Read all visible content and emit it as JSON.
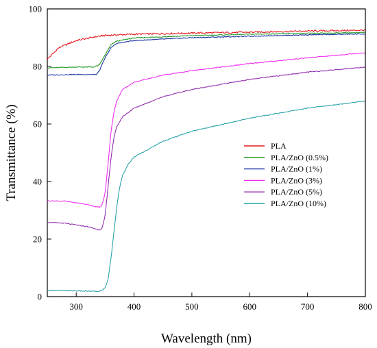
{
  "chart_data": {
    "type": "line",
    "title": "",
    "xlabel": "Wavelength (nm)",
    "ylabel": "Transmittance (%)",
    "xlim": [
      250,
      800
    ],
    "ylim": [
      0,
      100
    ],
    "x_ticks": [
      300,
      400,
      500,
      600,
      700,
      800
    ],
    "y_ticks": [
      0,
      20,
      40,
      60,
      80,
      100
    ],
    "grid": false,
    "legend_position": "center-right",
    "series": [
      {
        "name": "PLA",
        "color": "#e8171b",
        "x": [
          250,
          270,
          300,
          330,
          350,
          400,
          500,
          600,
          700,
          800
        ],
        "y": [
          82.5,
          86.5,
          89,
          90.2,
          90.8,
          91.2,
          91.6,
          91.9,
          92.3,
          92.6
        ]
      },
      {
        "name": "PLA/ZnO (0.5%)",
        "color": "#1f9a22",
        "x": [
          250,
          300,
          330,
          340,
          350,
          360,
          370,
          400,
          500,
          600,
          700,
          800
        ],
        "y": [
          79.5,
          79.8,
          79.8,
          80.5,
          84,
          87.5,
          88.8,
          89.9,
          90.7,
          91.2,
          91.5,
          91.8
        ]
      },
      {
        "name": "PLA/ZnO (1%)",
        "color": "#1a2fa3",
        "x": [
          250,
          300,
          335,
          340,
          350,
          360,
          370,
          400,
          500,
          600,
          700,
          800
        ],
        "y": [
          77,
          77.2,
          77.2,
          78.5,
          83,
          86.5,
          88,
          89,
          90,
          90.5,
          91,
          91.3
        ]
      },
      {
        "name": "PLA/ZnO (3%)",
        "color": "#f02cf0",
        "x": [
          250,
          280,
          320,
          340,
          345,
          350,
          355,
          360,
          365,
          370,
          380,
          400,
          450,
          500,
          600,
          700,
          800
        ],
        "y": [
          33.3,
          33.2,
          32,
          31,
          32,
          36,
          46,
          57,
          64,
          68,
          72,
          74.5,
          77,
          78.5,
          81,
          83,
          84.8
        ]
      },
      {
        "name": "PLA/ZnO (5%)",
        "color": "#9230b0",
        "x": [
          250,
          280,
          320,
          340,
          345,
          350,
          355,
          360,
          365,
          370,
          380,
          400,
          450,
          500,
          600,
          700,
          800
        ],
        "y": [
          25.8,
          25.5,
          24.3,
          23.2,
          24,
          28,
          38,
          48,
          55,
          59,
          62.5,
          65.5,
          69.5,
          72,
          75.5,
          78,
          79.8
        ]
      },
      {
        "name": "PLA/ZnO (10%)",
        "color": "#2aa3a8",
        "x": [
          250,
          280,
          320,
          340,
          350,
          355,
          360,
          365,
          370,
          375,
          380,
          390,
          400,
          450,
          500,
          600,
          700,
          800
        ],
        "y": [
          2.2,
          2.1,
          1.9,
          1.8,
          3,
          6,
          13,
          22,
          31,
          38,
          42,
          46,
          48.5,
          54,
          57.5,
          62,
          65.5,
          68
        ]
      }
    ]
  }
}
